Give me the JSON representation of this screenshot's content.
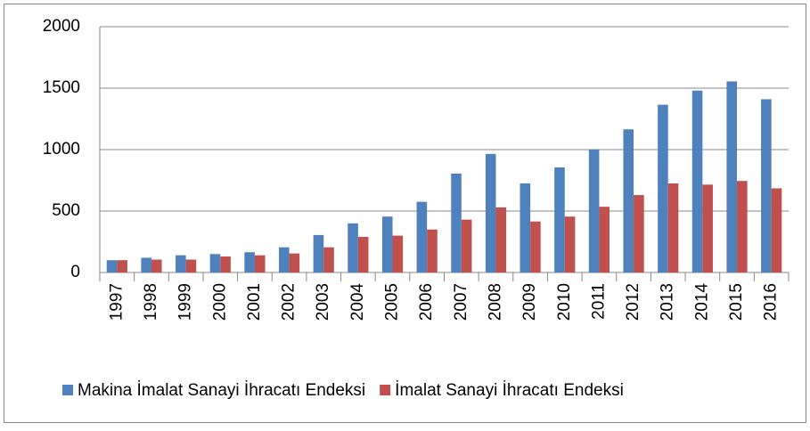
{
  "chart_data": {
    "type": "bar",
    "categories": [
      "1997",
      "1998",
      "1999",
      "2000",
      "2001",
      "2002",
      "2003",
      "2004",
      "2005",
      "2006",
      "2007",
      "2008",
      "2009",
      "2010",
      "2011",
      "2012",
      "2013",
      "2014",
      "2015",
      "2016"
    ],
    "series": [
      {
        "name": "Makina İmalat Sanayi İhracatı Endeksi",
        "color": "#4f81bd",
        "values": [
          100,
          120,
          140,
          150,
          165,
          205,
          305,
          400,
          455,
          575,
          805,
          965,
          725,
          855,
          1000,
          1165,
          1365,
          1480,
          1555,
          1410
        ]
      },
      {
        "name": "İmalat Sanayi İhracatı Endeksi",
        "color": "#c0504d",
        "values": [
          100,
          105,
          105,
          130,
          140,
          155,
          205,
          290,
          300,
          350,
          430,
          530,
          415,
          455,
          535,
          630,
          725,
          715,
          745,
          685
        ]
      }
    ],
    "ylim": [
      0,
      2000
    ],
    "yticks": [
      0,
      500,
      1000,
      1500,
      2000
    ],
    "grid": true,
    "legend": "bottom"
  }
}
